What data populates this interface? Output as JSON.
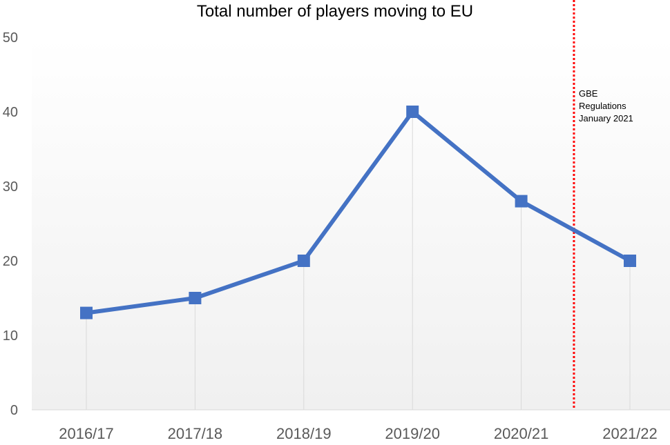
{
  "chart_data": {
    "type": "line",
    "title": "Total number of players moving to EU",
    "xlabel": "",
    "ylabel": "",
    "categories": [
      "2016/17",
      "2017/18",
      "2018/19",
      "2019/20",
      "2020/21",
      "2021/22"
    ],
    "series": [
      {
        "values": [
          13,
          15,
          20,
          40,
          28,
          20
        ]
      }
    ],
    "ylim": [
      0,
      50
    ],
    "yticks": [
      0,
      10,
      20,
      30,
      40,
      50
    ],
    "grid": "vertical drop lines at each category",
    "legend": "none",
    "line_color": "#4472C4",
    "marker": "square",
    "annotation": {
      "lines": [
        "GBE",
        "Regulations",
        "January 2021"
      ],
      "position": "between 2020/21 and 2021/22",
      "line_color": "#FF0000",
      "line_style": "dotted"
    }
  }
}
